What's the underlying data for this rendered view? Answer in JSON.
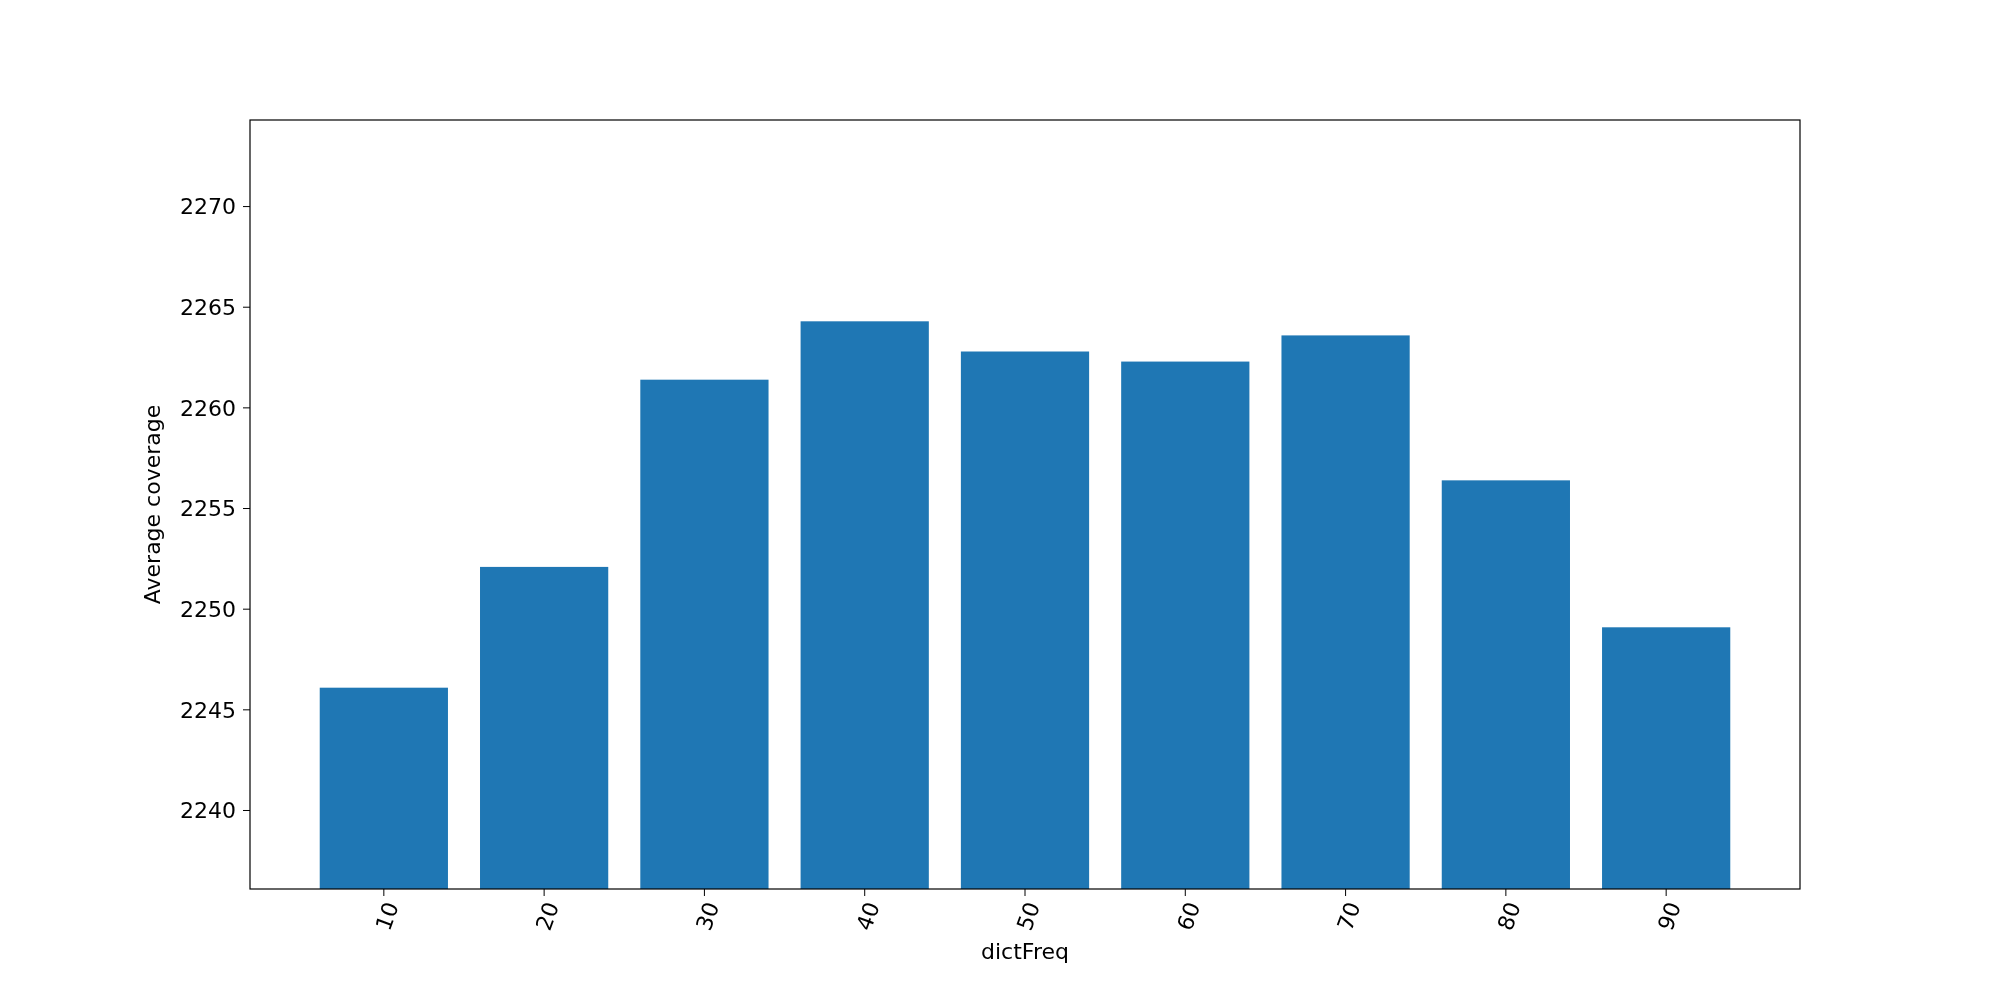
{
  "chart_data": {
    "type": "bar",
    "xlabel": "dictFreq",
    "ylabel": "Average coverage",
    "categories": [
      "10",
      "20",
      "30",
      "40",
      "50",
      "60",
      "70",
      "80",
      "90"
    ],
    "values": [
      2246.1,
      2252.1,
      2261.4,
      2264.3,
      2262.8,
      2262.3,
      2263.6,
      2256.4,
      2249.1
    ],
    "color": "#1f77b4",
    "ylim": [
      2236.1,
      2274.3
    ],
    "yticks": [
      2240,
      2245,
      2250,
      2255,
      2260,
      2265,
      2270
    ],
    "grid": false
  }
}
